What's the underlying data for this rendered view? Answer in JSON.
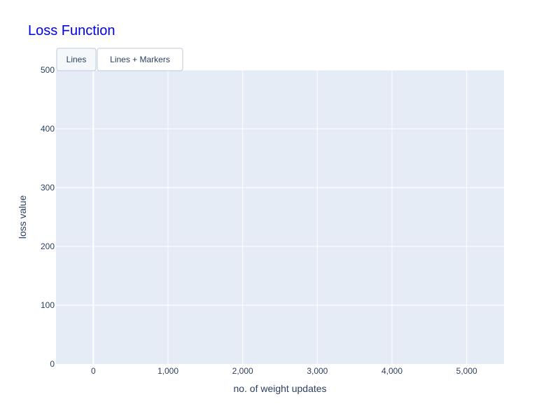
{
  "chart_data": {
    "type": "line",
    "title": "Loss Function",
    "xlabel": "no. of weight updates",
    "ylabel": "loss value",
    "xlim": [
      -500,
      5500
    ],
    "ylim": [
      0,
      500
    ],
    "x_ticks": [
      0,
      1000,
      2000,
      3000,
      4000,
      5000
    ],
    "x_tick_labels": [
      "0",
      "1,000",
      "2,000",
      "3,000",
      "4,000",
      "5,000"
    ],
    "y_ticks": [
      0,
      100,
      200,
      300,
      400,
      500
    ],
    "y_tick_labels": [
      "0",
      "100",
      "200",
      "300",
      "400",
      "500"
    ],
    "grid": true,
    "series": []
  },
  "mode_buttons": [
    {
      "label": "Lines",
      "active": true
    },
    {
      "label": "Lines + Markers",
      "active": false
    }
  ],
  "colors": {
    "title": "#0000ee",
    "plot_background": "#e5ecf6",
    "grid": "#ffffff",
    "text": "#2a3f5f",
    "button_border": "#bec8d9",
    "button_active": "#f4f8fb"
  }
}
